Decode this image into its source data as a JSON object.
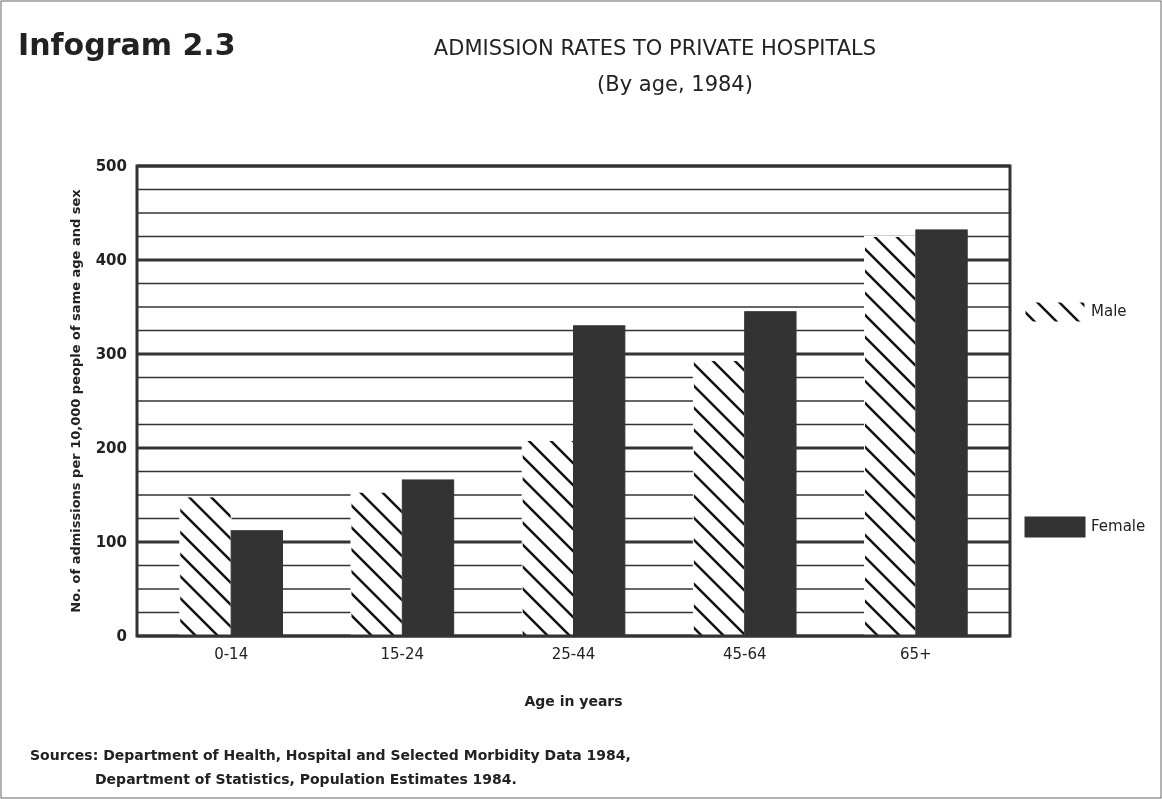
{
  "chart_data": {
    "type": "bar",
    "title": "ADMISSION RATES TO PRIVATE HOSPITALS",
    "subtitle": "(By age, 1984)",
    "xlabel": "Age in years",
    "ylabel": "No. of admissions per 10,000 people of same age and sex",
    "annotations": [
      "Infogram 2.3",
      "Sources: Department of Health, Hospital and Selected Morbidity Data 1984,",
      "Department of Statistics, Population Estimates 1984."
    ],
    "categories": [
      "0-14",
      "15-24",
      "25-44",
      "45-64",
      "65+"
    ],
    "series": [
      {
        "name": "Male",
        "color": "#ffffff",
        "values": [
          148,
          153,
          208,
          293,
          425
        ]
      },
      {
        "name": "Female",
        "color": "#333333",
        "values": [
          112,
          166,
          330,
          345,
          432
        ]
      }
    ],
    "ylim": [
      0,
      500
    ],
    "yticks": [
      0,
      {
        "value": 25,
        "label": null
      },
      {
        "value": 50,
        "label": null
      },
      {
        "value": 75,
        "label": null
      },
      100,
      {
        "value": 125,
        "label": null
      },
      {
        "value": 150,
        "label": null
      },
      {
        "value": 175,
        "label": null
      },
      200,
      {
        "value": 225,
        "label": null
      },
      {
        "value": 250,
        "label": null
      },
      {
        "value": 275,
        "label": null
      },
      300,
      {
        "value": 325,
        "label": null
      },
      {
        "value": 350,
        "label": null
      },
      {
        "value": 375,
        "label": null
      },
      400,
      {
        "value": 425,
        "label": null
      },
      {
        "value": 450,
        "label": null
      },
      {
        "value": 475,
        "label": null
      },
      500
    ],
    "grid": true,
    "legend": "right"
  }
}
